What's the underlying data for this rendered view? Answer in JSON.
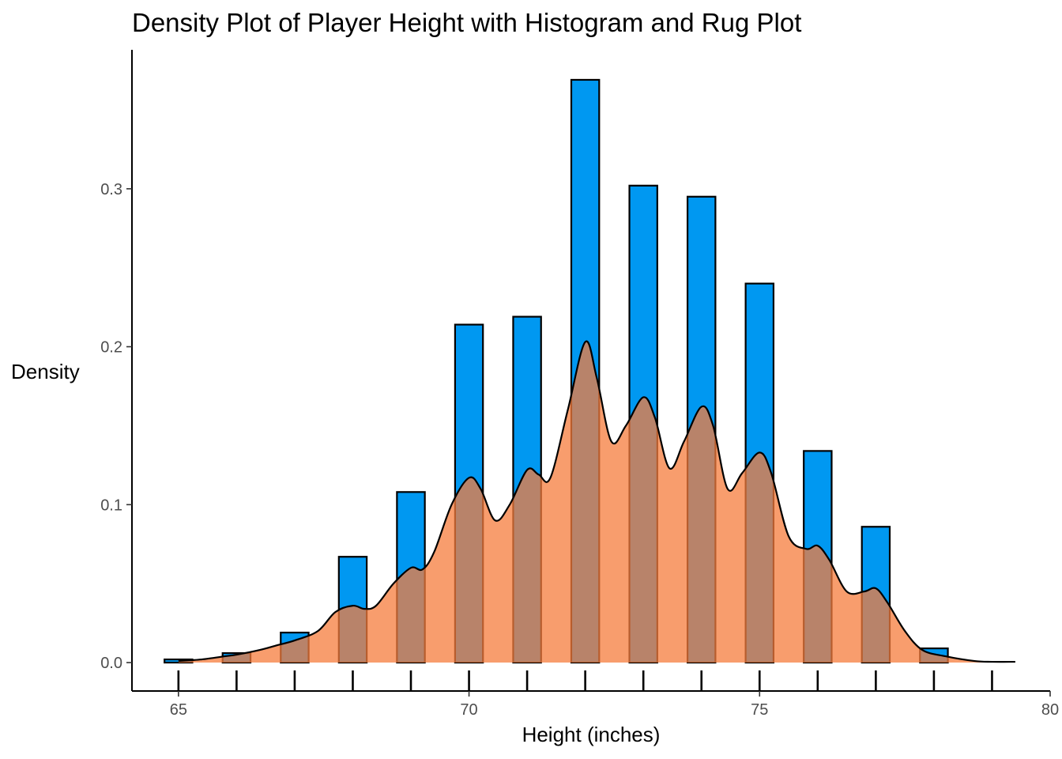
{
  "chart_data": {
    "type": "bar",
    "title": "Density Plot of Player Height with Histogram and Rug Plot",
    "xlabel": "Height (inches)",
    "ylabel": "Density",
    "xlim": [
      64.2,
      80.0
    ],
    "ylim": [
      -0.018,
      0.388
    ],
    "x_ticks": [
      65,
      70,
      75,
      80
    ],
    "y_ticks": [
      0.0,
      0.1,
      0.2,
      0.3
    ],
    "x_tick_labels": [
      "65",
      "70",
      "75",
      "80"
    ],
    "y_tick_labels": [
      "0.0",
      "0.1",
      "0.2",
      "0.3"
    ],
    "grid": false,
    "colors": {
      "histogram_fill": "#0098f1",
      "density_fill": "#f57c3c",
      "outline": "#000000"
    },
    "histogram": {
      "bin_width": 0.48,
      "bins": [
        {
          "x": 65.0,
          "density": 0.002
        },
        {
          "x": 66.0,
          "density": 0.006
        },
        {
          "x": 67.0,
          "density": 0.019
        },
        {
          "x": 68.0,
          "density": 0.067
        },
        {
          "x": 69.0,
          "density": 0.108
        },
        {
          "x": 70.0,
          "density": 0.214
        },
        {
          "x": 71.0,
          "density": 0.219
        },
        {
          "x": 72.0,
          "density": 0.369
        },
        {
          "x": 73.0,
          "density": 0.302
        },
        {
          "x": 74.0,
          "density": 0.295
        },
        {
          "x": 75.0,
          "density": 0.24
        },
        {
          "x": 76.0,
          "density": 0.134
        },
        {
          "x": 77.0,
          "density": 0.086
        },
        {
          "x": 78.0,
          "density": 0.009
        }
      ]
    },
    "density_curve": {
      "x": [
        65.0,
        65.4,
        65.8,
        66.0,
        66.4,
        66.7,
        67.0,
        67.4,
        67.7,
        68.0,
        68.2,
        68.4,
        68.7,
        69.0,
        69.2,
        69.4,
        69.7,
        70.0,
        70.2,
        70.45,
        70.7,
        71.0,
        71.2,
        71.4,
        71.7,
        72.0,
        72.2,
        72.45,
        72.7,
        73.0,
        73.2,
        73.45,
        73.7,
        74.0,
        74.2,
        74.45,
        74.7,
        75.0,
        75.2,
        75.5,
        75.8,
        76.0,
        76.2,
        76.5,
        76.8,
        77.0,
        77.2,
        77.5,
        77.8,
        78.2,
        78.7,
        79.0,
        79.4
      ],
      "y": [
        0.001,
        0.002,
        0.004,
        0.005,
        0.008,
        0.011,
        0.014,
        0.02,
        0.032,
        0.036,
        0.034,
        0.036,
        0.05,
        0.06,
        0.059,
        0.07,
        0.1,
        0.117,
        0.11,
        0.09,
        0.1,
        0.122,
        0.119,
        0.117,
        0.16,
        0.203,
        0.18,
        0.14,
        0.15,
        0.168,
        0.155,
        0.123,
        0.14,
        0.162,
        0.15,
        0.11,
        0.12,
        0.133,
        0.12,
        0.08,
        0.072,
        0.074,
        0.065,
        0.045,
        0.045,
        0.047,
        0.038,
        0.02,
        0.008,
        0.004,
        0.001,
        0.0005,
        0.0005
      ]
    },
    "rug": {
      "x": [
        65,
        66,
        67,
        68,
        69,
        70,
        71,
        72,
        73,
        74,
        75,
        76,
        77,
        78,
        79
      ]
    }
  }
}
